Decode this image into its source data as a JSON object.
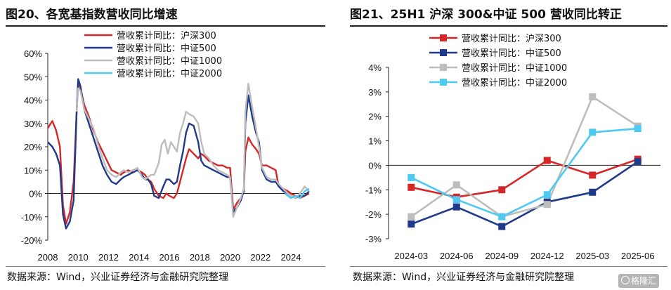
{
  "left": {
    "title": "图20、各宽基指数营收同比增速",
    "source": "数据来源：Wind，兴业证券经济与金融研究院整理"
  },
  "right": {
    "title": "图21、25H1 沪深 300&中证 500 营收同比转正",
    "source": "数据来源：Wind，兴业证券经济与金融研究院整理"
  },
  "watermark": "格隆汇",
  "colors": {
    "hs300": "#d62728",
    "zz500": "#1f3a8a",
    "zz1000": "#bdbdbd",
    "zz2000": "#4ec9f0"
  },
  "chart_data": [
    {
      "type": "line",
      "title": "图20、各宽基指数营收同比增速",
      "x_ticks": [
        "2008",
        "2010",
        "2012",
        "2014",
        "2016",
        "2018",
        "2020",
        "2022",
        "2024"
      ],
      "xlim": [
        2008,
        2025.2
      ],
      "y_ticks": [
        "60%",
        "50%",
        "40%",
        "30%",
        "20%",
        "10%",
        "0%",
        "-10%",
        "-20%"
      ],
      "ylim": [
        -20,
        60
      ],
      "legend_position": "top",
      "series": [
        {
          "name": "营收累计同比：沪深300",
          "color": "#d62728",
          "points": [
            [
              2008.0,
              28
            ],
            [
              2008.3,
              31
            ],
            [
              2008.55,
              27
            ],
            [
              2008.8,
              20
            ],
            [
              2009.0,
              -5
            ],
            [
              2009.2,
              -13
            ],
            [
              2009.45,
              -8
            ],
            [
              2009.7,
              5
            ],
            [
              2009.9,
              35
            ],
            [
              2010.0,
              48
            ],
            [
              2010.15,
              45
            ],
            [
              2010.4,
              38
            ],
            [
              2010.7,
              33
            ],
            [
              2011.0,
              27
            ],
            [
              2011.3,
              22
            ],
            [
              2011.6,
              18
            ],
            [
              2011.9,
              14
            ],
            [
              2012.2,
              10
            ],
            [
              2012.5,
              9
            ],
            [
              2012.8,
              8
            ],
            [
              2013.0,
              9
            ],
            [
              2013.3,
              10
            ],
            [
              2013.6,
              9
            ],
            [
              2013.9,
              10
            ],
            [
              2014.2,
              9
            ],
            [
              2014.4,
              8
            ],
            [
              2014.6,
              6
            ],
            [
              2014.8,
              5
            ],
            [
              2015.0,
              2
            ],
            [
              2015.3,
              -1
            ],
            [
              2015.6,
              -2
            ],
            [
              2015.8,
              0
            ],
            [
              2016.0,
              -1
            ],
            [
              2016.3,
              -2
            ],
            [
              2016.5,
              0
            ],
            [
              2016.7,
              5
            ],
            [
              2016.9,
              10
            ],
            [
              2017.1,
              15
            ],
            [
              2017.3,
              19
            ],
            [
              2017.6,
              17
            ],
            [
              2017.9,
              15
            ],
            [
              2018.1,
              17
            ],
            [
              2018.3,
              16
            ],
            [
              2018.6,
              14
            ],
            [
              2018.9,
              13
            ],
            [
              2019.2,
              12
            ],
            [
              2019.5,
              12
            ],
            [
              2019.8,
              11
            ],
            [
              2020.0,
              11
            ],
            [
              2020.2,
              -7
            ],
            [
              2020.45,
              -4
            ],
            [
              2020.7,
              -2
            ],
            [
              2020.9,
              1
            ],
            [
              2021.0,
              18
            ],
            [
              2021.2,
              24
            ],
            [
              2021.45,
              21
            ],
            [
              2021.7,
              19
            ],
            [
              2021.9,
              17
            ],
            [
              2022.1,
              12
            ],
            [
              2022.4,
              12
            ],
            [
              2022.7,
              11
            ],
            [
              2023.0,
              10
            ],
            [
              2023.2,
              3
            ],
            [
              2023.5,
              2
            ],
            [
              2023.8,
              1
            ],
            [
              2024.0,
              0
            ],
            [
              2024.3,
              -1
            ],
            [
              2024.6,
              -2
            ],
            [
              2024.9,
              -1
            ],
            [
              2025.2,
              0
            ]
          ]
        },
        {
          "name": "营收累计同比：中证500",
          "color": "#1f3a8a",
          "points": [
            [
              2008.0,
              22
            ],
            [
              2008.3,
              20
            ],
            [
              2008.55,
              17
            ],
            [
              2008.8,
              12
            ],
            [
              2009.0,
              -9
            ],
            [
              2009.2,
              -15
            ],
            [
              2009.45,
              -12
            ],
            [
              2009.7,
              -3
            ],
            [
              2009.9,
              35
            ],
            [
              2010.0,
              49
            ],
            [
              2010.15,
              46
            ],
            [
              2010.4,
              36
            ],
            [
              2010.7,
              30
            ],
            [
              2011.0,
              24
            ],
            [
              2011.3,
              18
            ],
            [
              2011.6,
              12
            ],
            [
              2011.9,
              8
            ],
            [
              2012.2,
              5
            ],
            [
              2012.5,
              4
            ],
            [
              2012.8,
              6
            ],
            [
              2013.0,
              7
            ],
            [
              2013.3,
              8
            ],
            [
              2013.6,
              9
            ],
            [
              2013.9,
              10
            ],
            [
              2014.2,
              8
            ],
            [
              2014.4,
              6
            ],
            [
              2014.6,
              6
            ],
            [
              2014.8,
              4
            ],
            [
              2015.0,
              -1
            ],
            [
              2015.3,
              -2
            ],
            [
              2015.6,
              3
            ],
            [
              2015.8,
              6
            ],
            [
              2016.0,
              6
            ],
            [
              2016.3,
              4
            ],
            [
              2016.5,
              5
            ],
            [
              2016.7,
              12
            ],
            [
              2016.9,
              18
            ],
            [
              2017.1,
              26
            ],
            [
              2017.3,
              30
            ],
            [
              2017.6,
              29
            ],
            [
              2017.9,
              22
            ],
            [
              2018.1,
              14
            ],
            [
              2018.3,
              12
            ],
            [
              2018.6,
              11
            ],
            [
              2018.9,
              10
            ],
            [
              2019.2,
              9
            ],
            [
              2019.5,
              8
            ],
            [
              2019.8,
              7
            ],
            [
              2020.0,
              7
            ],
            [
              2020.2,
              -8
            ],
            [
              2020.45,
              -6
            ],
            [
              2020.7,
              -3
            ],
            [
              2020.9,
              1
            ],
            [
              2021.0,
              30
            ],
            [
              2021.2,
              42
            ],
            [
              2021.45,
              33
            ],
            [
              2021.7,
              26
            ],
            [
              2021.9,
              22
            ],
            [
              2022.1,
              10
            ],
            [
              2022.4,
              6
            ],
            [
              2022.7,
              5
            ],
            [
              2023.0,
              5
            ],
            [
              2023.2,
              3
            ],
            [
              2023.5,
              1
            ],
            [
              2023.8,
              0
            ],
            [
              2024.0,
              -1
            ],
            [
              2024.3,
              -2
            ],
            [
              2024.6,
              -1
            ],
            [
              2024.9,
              -1
            ],
            [
              2025.2,
              1
            ]
          ]
        },
        {
          "name": "营收累计同比：中证1000",
          "color": "#bdbdbd",
          "points": [
            [
              2009.9,
              35
            ],
            [
              2010.0,
              45
            ],
            [
              2010.15,
              44
            ],
            [
              2010.4,
              36
            ],
            [
              2010.7,
              32
            ],
            [
              2011.0,
              28
            ],
            [
              2011.3,
              21
            ],
            [
              2011.6,
              15
            ],
            [
              2011.9,
              10
            ],
            [
              2012.2,
              8
            ],
            [
              2012.5,
              7
            ],
            [
              2012.8,
              9
            ],
            [
              2013.0,
              10
            ],
            [
              2013.3,
              9
            ],
            [
              2013.6,
              10
            ],
            [
              2013.9,
              11
            ],
            [
              2014.2,
              7
            ],
            [
              2014.4,
              6
            ],
            [
              2014.6,
              7
            ],
            [
              2014.8,
              8
            ],
            [
              2015.0,
              8
            ],
            [
              2015.3,
              13
            ],
            [
              2015.5,
              21
            ],
            [
              2015.7,
              23
            ],
            [
              2015.9,
              17
            ],
            [
              2016.1,
              22
            ],
            [
              2016.3,
              20
            ],
            [
              2016.5,
              18
            ],
            [
              2016.7,
              26
            ],
            [
              2016.9,
              30
            ],
            [
              2017.1,
              35
            ],
            [
              2017.3,
              34
            ],
            [
              2017.6,
              33
            ],
            [
              2017.9,
              30
            ],
            [
              2018.1,
              22
            ],
            [
              2018.3,
              17
            ],
            [
              2018.6,
              15
            ],
            [
              2018.9,
              12
            ],
            [
              2019.2,
              10
            ],
            [
              2019.5,
              9
            ],
            [
              2019.8,
              8
            ],
            [
              2020.0,
              7
            ],
            [
              2020.2,
              -10
            ],
            [
              2020.45,
              -6
            ],
            [
              2020.7,
              -2
            ],
            [
              2020.9,
              2
            ],
            [
              2021.0,
              35
            ],
            [
              2021.2,
              47
            ],
            [
              2021.45,
              37
            ],
            [
              2021.7,
              28
            ],
            [
              2021.9,
              20
            ],
            [
              2022.1,
              11
            ],
            [
              2022.4,
              7
            ],
            [
              2022.7,
              6
            ],
            [
              2023.0,
              6
            ],
            [
              2023.2,
              4
            ],
            [
              2023.5,
              2
            ],
            [
              2023.8,
              0
            ],
            [
              2024.0,
              -1
            ],
            [
              2024.3,
              -2
            ],
            [
              2024.6,
              0
            ],
            [
              2024.9,
              3
            ],
            [
              2025.2,
              1
            ]
          ]
        },
        {
          "name": "营收累计同比：中证2000",
          "color": "#4ec9f0",
          "points": [
            [
              2023.6,
              0
            ],
            [
              2023.8,
              -1
            ],
            [
              2024.0,
              -2
            ],
            [
              2024.3,
              -1
            ],
            [
              2024.6,
              -2
            ],
            [
              2024.9,
              1
            ],
            [
              2025.2,
              2
            ]
          ]
        }
      ]
    },
    {
      "type": "line",
      "title": "图21、25H1 沪深 300&中证 500 营收同比转正",
      "categories": [
        "2024-03",
        "2024-06",
        "2024-09",
        "2024-12",
        "2025-03",
        "2025-06"
      ],
      "y_ticks": [
        "4%",
        "3%",
        "2%",
        "1%",
        "0%",
        "-1%",
        "-2%",
        "-3%"
      ],
      "ylim": [
        -3,
        4
      ],
      "legend_position": "top",
      "series": [
        {
          "name": "营收累计同比：沪深300",
          "color": "#d62728",
          "marker": "square",
          "values": [
            -0.9,
            -1.3,
            -1.0,
            0.2,
            -0.4,
            0.25
          ]
        },
        {
          "name": "营收累计同比：中证500",
          "color": "#1f3a8a",
          "marker": "square",
          "values": [
            -2.4,
            -1.7,
            -2.5,
            -1.5,
            -1.1,
            0.15
          ]
        },
        {
          "name": "营收累计同比：中证1000",
          "color": "#bdbdbd",
          "marker": "square",
          "values": [
            -2.1,
            -0.8,
            -2.1,
            -1.6,
            2.8,
            1.6
          ]
        },
        {
          "name": "营收累计同比：中证2000",
          "color": "#4ec9f0",
          "marker": "square",
          "values": [
            -0.5,
            -1.4,
            -2.1,
            -1.2,
            1.35,
            1.5
          ]
        }
      ]
    }
  ]
}
